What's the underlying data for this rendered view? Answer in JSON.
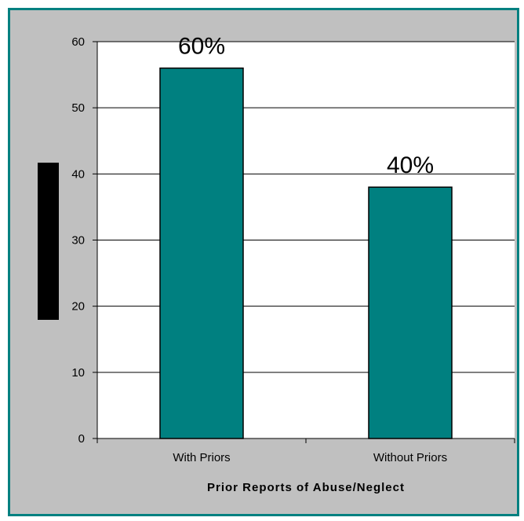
{
  "chart_data": {
    "type": "bar",
    "categories": [
      "With Priors",
      "Without Priors"
    ],
    "values": [
      56,
      38
    ],
    "data_labels": [
      "60%",
      "40%"
    ],
    "title": "",
    "xlabel": "Prior Reports of Abuse/Neglect",
    "ylabel": "",
    "ylim": [
      0,
      60
    ],
    "yticks": [
      "0",
      "10",
      "20",
      "30",
      "40",
      "50",
      "60"
    ],
    "grid": true,
    "legend": "none",
    "colors": {
      "bar": "#008080",
      "plot_bg": "#ffffff",
      "frame_bg": "#c0c0c0",
      "frame_border": "#008080",
      "redaction": "#000000"
    }
  }
}
